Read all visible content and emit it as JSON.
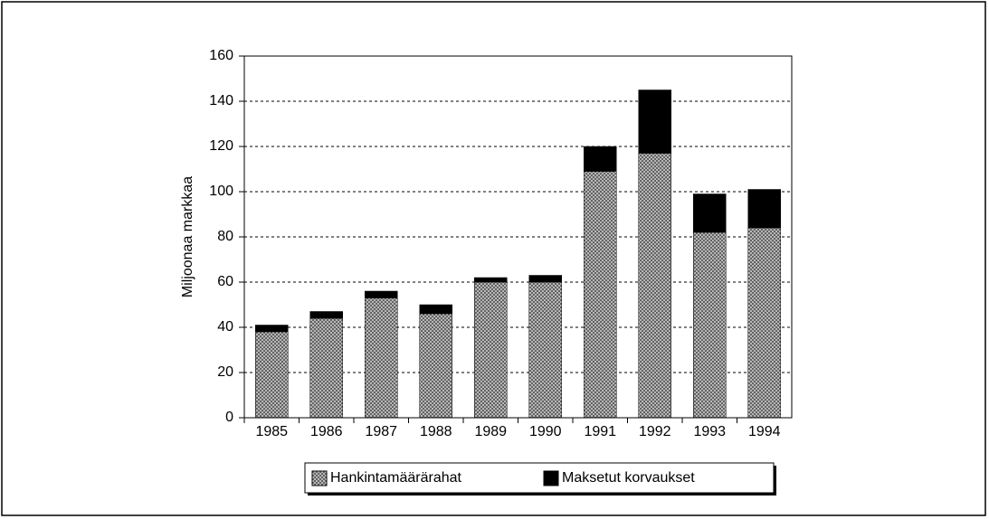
{
  "chart_data": {
    "type": "stacked_bar",
    "y_label": "Miljoonaa markkaa",
    "categories": [
      "1985",
      "1986",
      "1987",
      "1988",
      "1989",
      "1990",
      "1991",
      "1992",
      "1993",
      "1994"
    ],
    "series": [
      {
        "name": "Hankintamäärärahat",
        "color": "#8c8c8c",
        "hatch": true,
        "values": [
          38,
          44,
          53,
          46,
          60,
          60,
          109,
          117,
          82,
          84
        ]
      },
      {
        "name": "Maksetut korvaukset",
        "color": "#000000",
        "hatch": false,
        "values": [
          3,
          3,
          3,
          4,
          2,
          3,
          11,
          28,
          17,
          17
        ]
      }
    ],
    "ylim": [
      0,
      160
    ],
    "yticks": [
      0,
      20,
      40,
      60,
      80,
      100,
      120,
      140,
      160
    ],
    "grid": true,
    "legend": "bottom"
  }
}
